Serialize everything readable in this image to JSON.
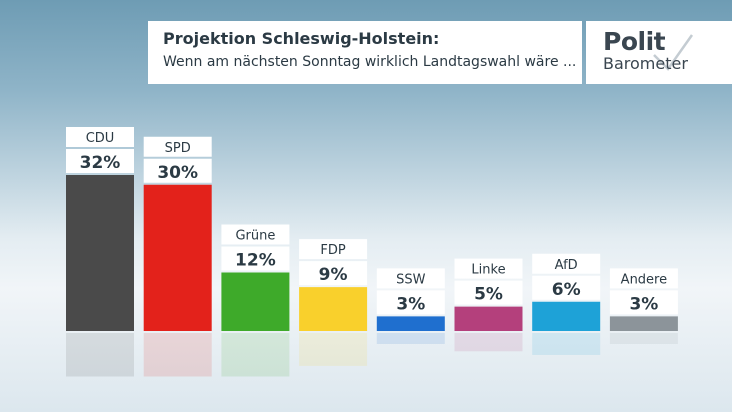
{
  "header": {
    "title": "Projektion Schleswig-Holstein:",
    "subtitle": "Wenn am nächsten Sonntag wirklich Landtagswahl wäre ..."
  },
  "logo": {
    "line1": "Polit",
    "line2": "Barometer"
  },
  "chart_data": {
    "type": "bar",
    "title": "Projektion Schleswig-Holstein:",
    "subtitle": "Wenn am nächsten Sonntag wirklich Landtagswahl wäre ...",
    "categories": [
      "CDU",
      "SPD",
      "Grüne",
      "FDP",
      "SSW",
      "Linke",
      "AfD",
      "Andere"
    ],
    "values": [
      32,
      30,
      12,
      9,
      3,
      5,
      6,
      3
    ],
    "value_labels": [
      "32%",
      "30%",
      "12%",
      "9%",
      "3%",
      "5%",
      "6%",
      "3%"
    ],
    "colors": [
      "#4a4a4a",
      "#e3221b",
      "#3eaa2a",
      "#f9d02c",
      "#1f6fcf",
      "#b4407c",
      "#1ea2d7",
      "#8c949a"
    ],
    "unit": "%",
    "ylim": [
      0,
      32
    ],
    "grid": false,
    "legend": "none"
  }
}
